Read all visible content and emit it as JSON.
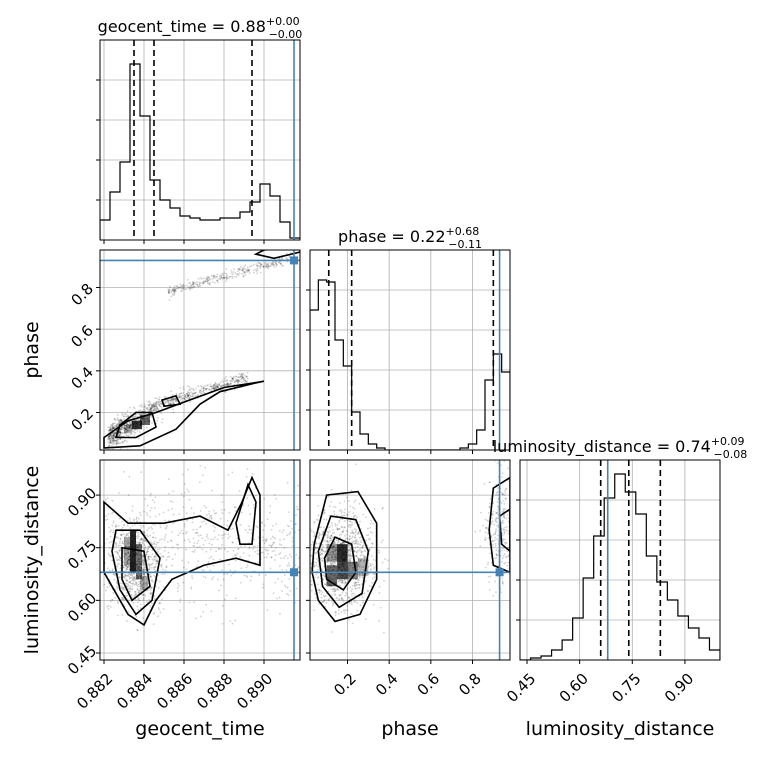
{
  "chart_data": {
    "type": "corner",
    "parameters": [
      "geocent_time",
      "phase",
      "luminosity_distance"
    ],
    "truths": {
      "geocent_time": 0.8915,
      "phase": 0.93,
      "luminosity_distance": 0.68
    },
    "ranges": {
      "geocent_time": [
        0.8818,
        0.8918
      ],
      "phase": [
        0.02,
        0.98
      ],
      "luminosity_distance": [
        0.43,
        1.0
      ]
    },
    "titles": [
      {
        "param": "geocent_time",
        "label": "geocent_time = 0.88",
        "sup": "+0.00",
        "sub": "−0.00"
      },
      {
        "param": "phase",
        "label": "phase = 0.22",
        "sup": "+0.68",
        "sub": "−0.11"
      },
      {
        "param": "luminosity_distance",
        "label": "luminosity_distance = 0.74",
        "sup": "+0.09",
        "sub": "−0.08"
      }
    ],
    "axis_labels": {
      "x": [
        "geocent_time",
        "phase",
        "luminosity_distance"
      ],
      "y": [
        "phase",
        "luminosity_distance"
      ]
    },
    "ticks": {
      "geocent_time": {
        "values": [
          0.882,
          0.884,
          0.886,
          0.888,
          0.89
        ],
        "labels": [
          "0.882",
          "0.884",
          "0.886",
          "0.888",
          "0.890"
        ]
      },
      "phase": {
        "values": [
          0.2,
          0.4,
          0.6,
          0.8
        ],
        "labels": [
          "0.2",
          "0.4",
          "0.6",
          "0.8"
        ]
      },
      "luminosity_distance": {
        "values": [
          0.45,
          0.6,
          0.75,
          0.9
        ],
        "labels": [
          "0.45",
          "0.60",
          "0.75",
          "0.90"
        ]
      }
    },
    "histograms": {
      "geocent_time": {
        "edges_start": 0.8818,
        "bin_width": 0.0005,
        "counts": [
          0.1,
          0.24,
          0.39,
          0.88,
          0.62,
          0.3,
          0.2,
          0.16,
          0.12,
          0.11,
          0.1,
          0.1,
          0.11,
          0.11,
          0.14,
          0.19,
          0.28,
          0.22,
          0.09,
          0.01
        ],
        "quantiles": [
          0.8835,
          0.8845,
          0.8894
        ],
        "ymax": 1.0
      },
      "phase": {
        "edges_start": 0.02,
        "bin_width": 0.04,
        "counts": [
          0.7,
          0.85,
          0.84,
          0.55,
          0.42,
          0.19,
          0.08,
          0.03,
          0.01,
          0.0,
          0.0,
          0.0,
          0.0,
          0.0,
          0.0,
          0.0,
          0.0,
          0.0,
          0.01,
          0.03,
          0.1,
          0.35,
          0.48,
          0.39
        ],
        "quantiles": [
          0.11,
          0.22,
          0.9
        ],
        "ymax": 1.0
      },
      "luminosity_distance": {
        "edges_start": 0.43,
        "bin_width": 0.03,
        "counts": [
          0.0,
          0.01,
          0.02,
          0.05,
          0.1,
          0.21,
          0.41,
          0.62,
          0.81,
          0.93,
          0.84,
          0.73,
          0.52,
          0.39,
          0.3,
          0.22,
          0.16,
          0.11,
          0.05
        ],
        "quantiles": [
          0.66,
          0.74,
          0.83
        ],
        "ymax": 1.0
      }
    },
    "grid": true
  }
}
